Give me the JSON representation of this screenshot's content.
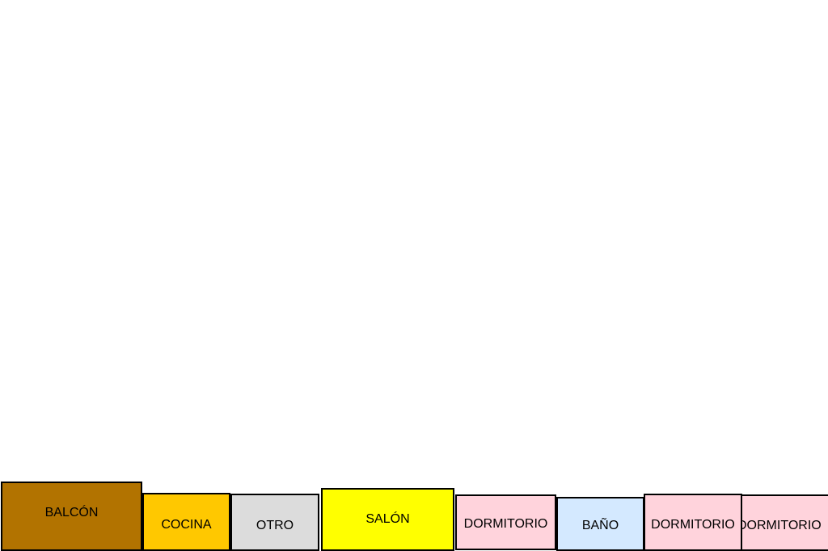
{
  "rooms": [
    "BALCÓN",
    "COCINA",
    "OTRO",
    "SALÓN",
    "DORMITORIO",
    "BAÑO",
    "DORMITORIO",
    "DORMITORIO"
  ]
}
